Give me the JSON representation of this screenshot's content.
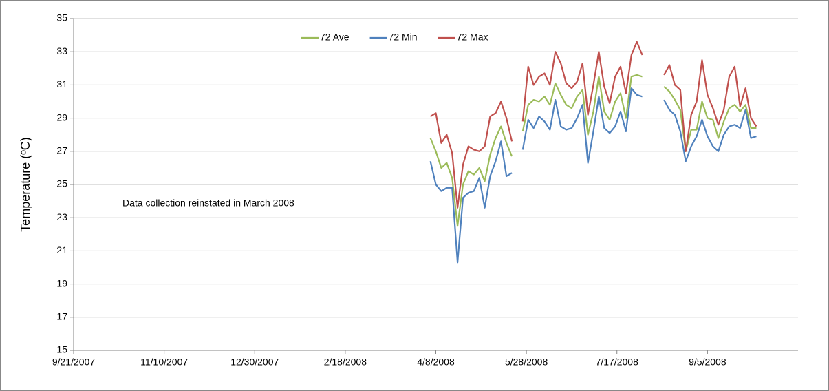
{
  "chart_data": {
    "type": "line",
    "y_label": "Temperature (ºC)",
    "annotation": "Data collection reinstated in March 2008",
    "x": [
      "4/5/2008",
      "4/8/2008",
      "4/11/2008",
      "4/14/2008",
      "4/17/2008",
      "4/20/2008",
      "4/23/2008",
      "4/26/2008",
      "4/29/2008",
      "5/2/2008",
      "5/5/2008",
      "5/8/2008",
      "5/11/2008",
      "5/14/2008",
      "5/17/2008",
      "5/20/2008",
      "5/23/2008",
      "5/26/2008",
      "5/29/2008",
      "6/1/2008",
      "6/4/2008",
      "6/7/2008",
      "6/10/2008",
      "6/13/2008",
      "6/16/2008",
      "6/19/2008",
      "6/22/2008",
      "6/25/2008",
      "6/28/2008",
      "7/1/2008",
      "7/4/2008",
      "7/7/2008",
      "7/10/2008",
      "7/13/2008",
      "7/16/2008",
      "7/19/2008",
      "7/22/2008",
      "7/25/2008",
      "7/28/2008",
      "7/31/2008",
      "8/6/2008",
      "8/12/2008",
      "8/15/2008",
      "8/18/2008",
      "8/21/2008",
      "8/24/2008",
      "8/27/2008",
      "8/30/2008",
      "9/2/2008",
      "9/5/2008",
      "9/8/2008",
      "9/11/2008",
      "9/14/2008",
      "9/17/2008",
      "9/20/2008",
      "9/23/2008",
      "9/26/2008",
      "9/29/2008",
      "10/2/2008"
    ],
    "series": [
      {
        "name": "72 Ave",
        "color": "#9bbb59",
        "values": [
          27.8,
          27.0,
          26.0,
          26.3,
          25.4,
          22.5,
          25.0,
          25.8,
          25.6,
          26.0,
          25.2,
          26.8,
          27.8,
          28.5,
          27.5,
          26.7,
          null,
          28.2,
          29.8,
          30.1,
          30.0,
          30.3,
          29.8,
          31.1,
          30.4,
          29.8,
          29.6,
          30.3,
          30.7,
          28.0,
          29.4,
          31.5,
          29.4,
          28.9,
          30.0,
          30.5,
          29.0,
          31.5,
          31.6,
          31.5,
          null,
          30.9,
          30.6,
          30.1,
          29.5,
          27.0,
          28.3,
          28.3,
          30.0,
          29.0,
          28.9,
          27.8,
          28.8,
          29.6,
          29.8,
          29.4,
          29.8,
          28.4,
          28.4
        ]
      },
      {
        "name": "72 Min",
        "color": "#4f81bd",
        "values": [
          26.4,
          25.0,
          24.6,
          24.8,
          24.8,
          20.3,
          24.2,
          24.5,
          24.6,
          25.4,
          23.6,
          25.5,
          26.4,
          27.6,
          25.5,
          25.7,
          null,
          27.1,
          28.9,
          28.4,
          29.1,
          28.8,
          28.3,
          30.1,
          28.5,
          28.3,
          28.4,
          29.0,
          29.8,
          26.3,
          28.2,
          30.3,
          28.4,
          28.1,
          28.5,
          29.4,
          28.2,
          30.8,
          30.4,
          30.3,
          null,
          30.1,
          29.5,
          29.2,
          28.2,
          26.4,
          27.3,
          27.9,
          28.9,
          27.9,
          27.3,
          27.0,
          28.0,
          28.5,
          28.6,
          28.4,
          29.5,
          27.8,
          27.9
        ]
      },
      {
        "name": "72 Max",
        "color": "#c0504d",
        "values": [
          29.1,
          29.3,
          27.5,
          28.0,
          26.9,
          23.6,
          26.2,
          27.3,
          27.1,
          27.0,
          27.3,
          29.1,
          29.3,
          30.0,
          29.0,
          27.6,
          null,
          28.8,
          32.1,
          31.0,
          31.5,
          31.7,
          31.0,
          33.0,
          32.3,
          31.1,
          30.8,
          31.2,
          32.3,
          29.2,
          31.0,
          33.0,
          30.9,
          29.9,
          31.5,
          32.1,
          30.5,
          32.8,
          33.6,
          32.8,
          null,
          31.6,
          32.2,
          31.0,
          30.7,
          27.0,
          29.2,
          30.0,
          32.5,
          30.4,
          29.6,
          28.6,
          29.5,
          31.5,
          32.1,
          29.7,
          30.8,
          29.0,
          28.5
        ]
      }
    ],
    "xlim": [
      "9/21/2007",
      "10/25/2008"
    ],
    "xticks": [
      "9/21/2007",
      "11/10/2007",
      "12/30/2007",
      "2/18/2008",
      "4/8/2008",
      "5/28/2008",
      "7/17/2008",
      "9/5/2008"
    ],
    "ylim": [
      15,
      35
    ],
    "yticks": [
      15,
      17,
      19,
      21,
      23,
      25,
      27,
      29,
      31,
      33,
      35
    ],
    "grid": true
  }
}
